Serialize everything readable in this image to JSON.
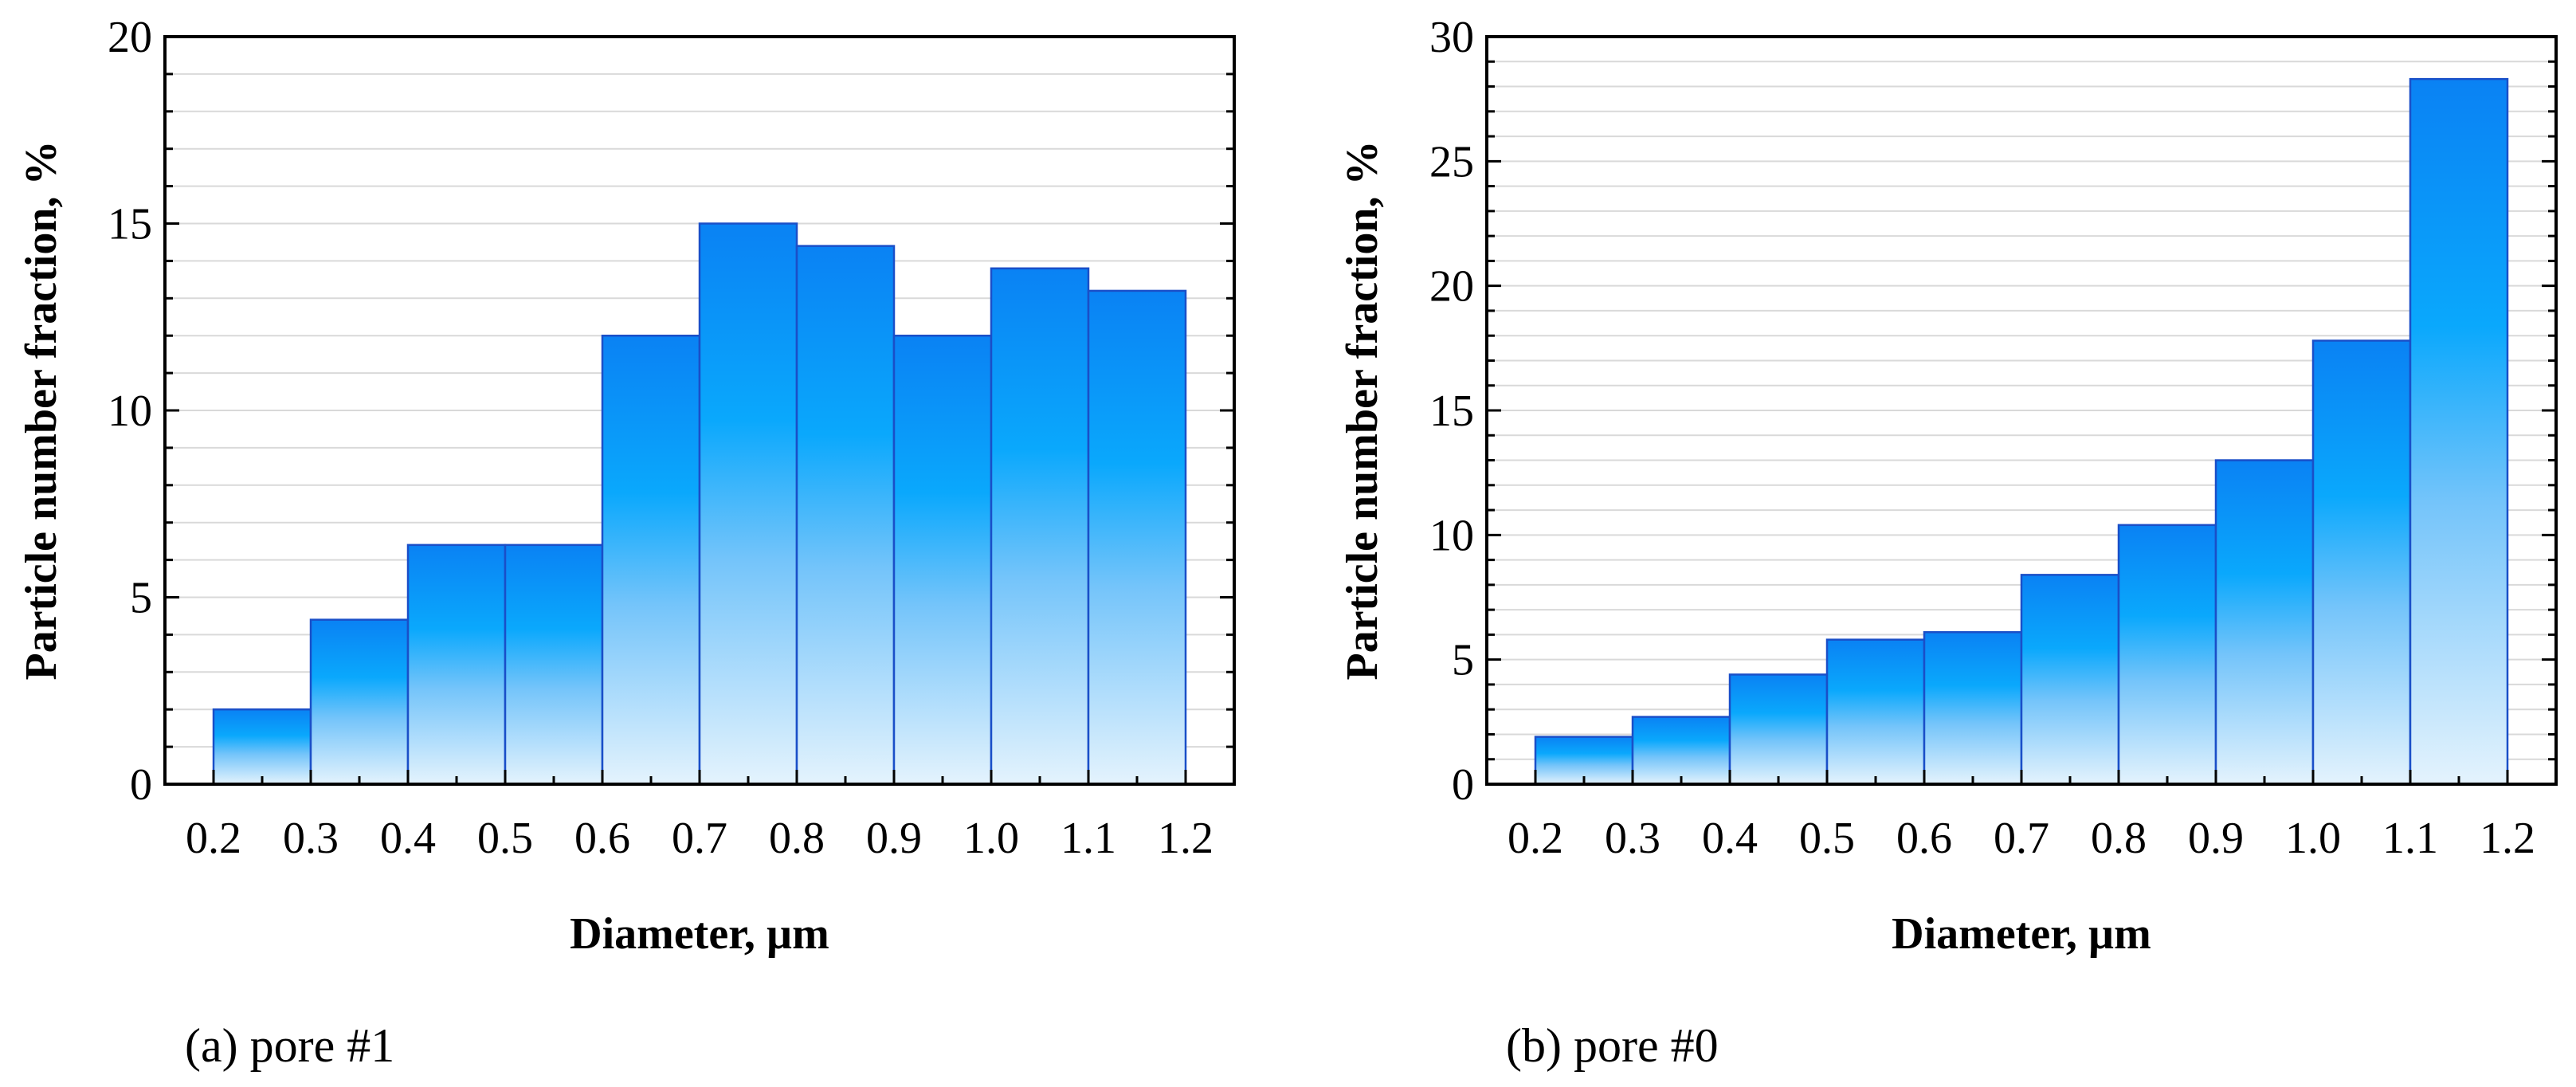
{
  "chart_data": [
    {
      "type": "bar",
      "caption": "(a) pore #1",
      "xlabel": "Diameter, µm",
      "ylabel": "Particle number fraction, %",
      "x_ticks": [
        "0.2",
        "0.3",
        "0.4",
        "0.5",
        "0.6",
        "0.7",
        "0.8",
        "0.9",
        "1.0",
        "1.1",
        "1.2"
      ],
      "y_ticks": [
        "0",
        "5",
        "10",
        "15",
        "20"
      ],
      "ylim": [
        0,
        20
      ],
      "bin_edges": [
        0.2,
        0.3,
        0.4,
        0.5,
        0.6,
        0.7,
        0.8,
        0.9,
        1.0,
        1.1,
        1.2
      ],
      "values": [
        2.0,
        4.4,
        6.4,
        6.4,
        12.0,
        15.0,
        14.4,
        12.0,
        13.8,
        13.2
      ],
      "grid": true
    },
    {
      "type": "bar",
      "caption": "(b) pore #0",
      "xlabel": "Diameter, µm",
      "ylabel": "Particle number fraction, %",
      "x_ticks": [
        "0.2",
        "0.3",
        "0.4",
        "0.5",
        "0.6",
        "0.7",
        "0.8",
        "0.9",
        "1.0",
        "1.1",
        "1.2"
      ],
      "y_ticks": [
        "0",
        "5",
        "10",
        "15",
        "20",
        "25",
        "30"
      ],
      "ylim": [
        0,
        30
      ],
      "bin_edges": [
        0.2,
        0.3,
        0.4,
        0.5,
        0.6,
        0.7,
        0.8,
        0.9,
        1.0,
        1.1,
        1.2
      ],
      "values": [
        1.9,
        2.7,
        4.4,
        5.8,
        6.1,
        8.4,
        10.4,
        13.0,
        17.8,
        28.3
      ],
      "grid": true
    }
  ],
  "colors": {
    "bar_top": "#0a82f4",
    "bar_bottom": "#e4f3fd",
    "bar_edge": "#1a4fc8",
    "grid": "#d9d9d9",
    "axis": "#000000"
  }
}
